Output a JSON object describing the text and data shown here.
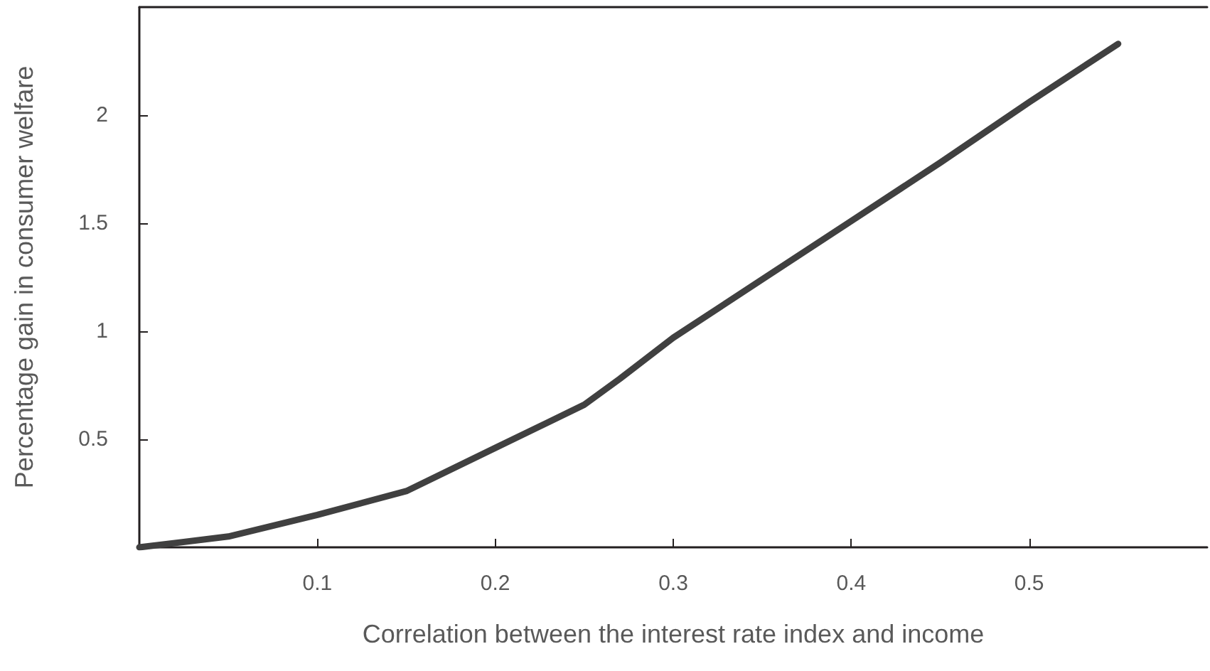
{
  "chart_data": {
    "type": "line",
    "xlabel": "Correlation between the interest rate index and income",
    "ylabel": "Percentage gain in consumer welfare",
    "x": [
      0,
      0.05,
      0.1,
      0.15,
      0.2,
      0.25,
      0.27,
      0.3,
      0.35,
      0.4,
      0.45,
      0.5,
      0.55
    ],
    "series": [
      {
        "color": "#404040",
        "values": [
          0,
          0.05,
          0.15,
          0.26,
          0.46,
          0.66,
          0.78,
          0.97,
          1.24,
          1.51,
          1.78,
          2.06,
          2.33
        ]
      }
    ],
    "xlim": [
      0,
      0.6
    ],
    "xticks": [
      0.1,
      0.2,
      0.3,
      0.4,
      0.5
    ],
    "ylim": [
      0,
      2.5
    ],
    "yticks": [
      0.5,
      1,
      1.5,
      2
    ],
    "marker": "none",
    "line_style": "solid"
  }
}
